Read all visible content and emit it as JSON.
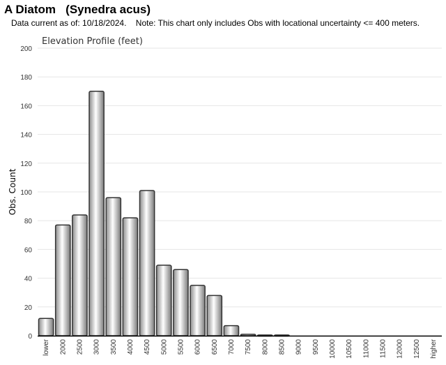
{
  "header": {
    "title": "A Diatom   (Synedra acus)",
    "note": "Data current as of: 10/18/2024.    Note: This chart only includes Obs with locational uncertainty <= 400 meters."
  },
  "chart_data": {
    "type": "bar",
    "title": "Elevation Profile (feet)",
    "xlabel": "",
    "ylabel": "Obs. Count",
    "ylim": [
      0,
      200
    ],
    "yticks": [
      0,
      20,
      40,
      60,
      80,
      100,
      120,
      140,
      160,
      180,
      200
    ],
    "grid": true,
    "categories": [
      "lower",
      "2000",
      "2500",
      "3000",
      "3500",
      "4000",
      "4500",
      "5000",
      "5500",
      "6000",
      "6500",
      "7000",
      "7500",
      "8000",
      "8500",
      "9000",
      "9500",
      "10000",
      "10500",
      "11000",
      "11500",
      "12000",
      "12500",
      "higher"
    ],
    "values": [
      12,
      77,
      84,
      170,
      96,
      82,
      101,
      49,
      46,
      35,
      28,
      7,
      1,
      0.5,
      0.5,
      0,
      0,
      0,
      0,
      0,
      0,
      0,
      0,
      0
    ],
    "colors": {
      "bar_light": "#ffffff",
      "bar_dark": "#888888",
      "bar_edge": "#333333",
      "grid": "#e6e6e6",
      "axis": "#000000"
    }
  }
}
